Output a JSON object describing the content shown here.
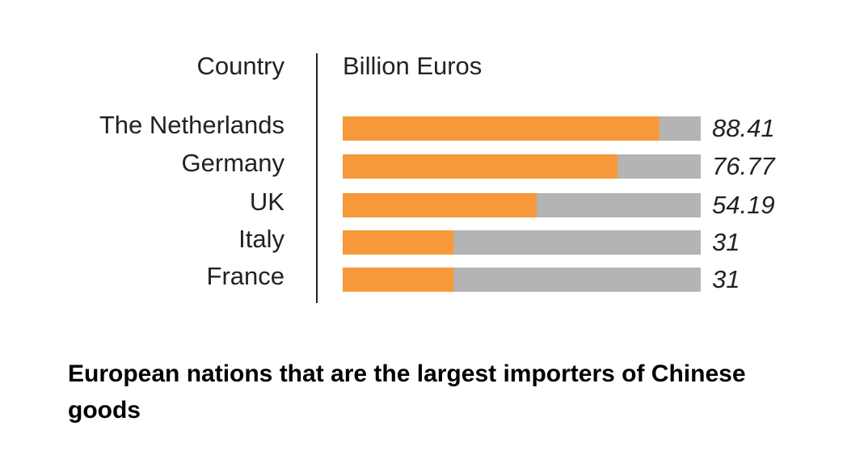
{
  "chart_data": {
    "type": "bar",
    "orientation": "horizontal",
    "title": "European nations that are the largest importers of Chinese goods",
    "ylabel": "Country",
    "xlabel": "Billion Euros",
    "categories": [
      "The Netherlands",
      "Germany",
      "UK",
      "Italy",
      "France"
    ],
    "values": [
      88.41,
      76.77,
      54.19,
      31,
      31
    ],
    "color": "#f7993a",
    "track_color": "#b4b4b4",
    "xlim": [
      0,
      100
    ]
  }
}
